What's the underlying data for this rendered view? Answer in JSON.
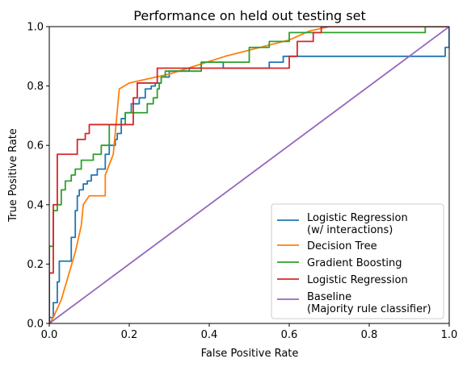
{
  "chart_data": {
    "type": "line",
    "title": "Performance on held out testing set",
    "xlabel": "False Positive Rate",
    "ylabel": "True Positive Rate",
    "xlim": [
      0,
      1
    ],
    "ylim": [
      0,
      1
    ],
    "xticks": [
      "0.0",
      "0.2",
      "0.4",
      "0.6",
      "0.8",
      "1.0"
    ],
    "yticks": [
      "0.0",
      "0.2",
      "0.4",
      "0.6",
      "0.8",
      "1.0"
    ],
    "grid": false,
    "legend_position": "lower right",
    "series": [
      {
        "name": "Logistic Regression\n(w/ interactions)",
        "color": "#1f77b4",
        "x": [
          0,
          0,
          0.01,
          0.01,
          0.02,
          0.02,
          0.025,
          0.025,
          0.055,
          0.055,
          0.065,
          0.065,
          0.07,
          0.07,
          0.075,
          0.075,
          0.085,
          0.085,
          0.095,
          0.095,
          0.105,
          0.105,
          0.12,
          0.12,
          0.14,
          0.14,
          0.15,
          0.15,
          0.165,
          0.165,
          0.17,
          0.17,
          0.18,
          0.18,
          0.19,
          0.19,
          0.205,
          0.205,
          0.225,
          0.225,
          0.24,
          0.24,
          0.255,
          0.255,
          0.265,
          0.265,
          0.28,
          0.28,
          0.3,
          0.3,
          0.35,
          0.35,
          0.38,
          0.38,
          0.435,
          0.435,
          0.55,
          0.55,
          0.585,
          0.585,
          0.63,
          0.63,
          0.99,
          0.99,
          1.0,
          1.0
        ],
        "y": [
          0,
          0.02,
          0.02,
          0.07,
          0.07,
          0.14,
          0.14,
          0.21,
          0.21,
          0.29,
          0.29,
          0.38,
          0.38,
          0.43,
          0.43,
          0.45,
          0.45,
          0.47,
          0.47,
          0.48,
          0.48,
          0.5,
          0.5,
          0.52,
          0.52,
          0.57,
          0.57,
          0.6,
          0.6,
          0.62,
          0.62,
          0.64,
          0.64,
          0.69,
          0.69,
          0.71,
          0.71,
          0.74,
          0.74,
          0.76,
          0.76,
          0.79,
          0.79,
          0.8,
          0.8,
          0.81,
          0.81,
          0.83,
          0.83,
          0.85,
          0.85,
          0.86,
          0.86,
          0.88,
          0.88,
          0.86,
          0.86,
          0.88,
          0.88,
          0.9,
          0.9,
          0.9,
          0.9,
          0.93,
          0.93,
          1.0
        ]
      },
      {
        "name": "Decision Tree",
        "color": "#ff7f0e",
        "x": [
          0,
          0.01,
          0.03,
          0.065,
          0.08,
          0.085,
          0.1,
          0.11,
          0.14,
          0.14,
          0.16,
          0.175,
          0.2,
          0.3,
          0.44,
          0.6,
          0.65,
          0.7,
          1.0
        ],
        "y": [
          0,
          0.02,
          0.08,
          0.24,
          0.33,
          0.4,
          0.43,
          0.43,
          0.43,
          0.5,
          0.57,
          0.79,
          0.81,
          0.84,
          0.9,
          0.955,
          0.985,
          1.0,
          1.0
        ],
        "step": false
      },
      {
        "name": "Gradient Boosting",
        "color": "#2ca02c",
        "x": [
          0,
          0,
          0.01,
          0.01,
          0.02,
          0.02,
          0.03,
          0.03,
          0.04,
          0.04,
          0.055,
          0.055,
          0.065,
          0.065,
          0.08,
          0.08,
          0.11,
          0.11,
          0.13,
          0.13,
          0.15,
          0.15,
          0.19,
          0.19,
          0.245,
          0.245,
          0.26,
          0.26,
          0.27,
          0.27,
          0.275,
          0.275,
          0.28,
          0.28,
          0.29,
          0.29,
          0.38,
          0.38,
          0.5,
          0.5,
          0.55,
          0.55,
          0.6,
          0.6,
          0.65,
          0.65,
          0.94,
          0.94,
          1.0
        ],
        "y": [
          0,
          0.26,
          0.26,
          0.38,
          0.38,
          0.4,
          0.4,
          0.45,
          0.45,
          0.48,
          0.48,
          0.5,
          0.5,
          0.52,
          0.52,
          0.55,
          0.55,
          0.57,
          0.57,
          0.6,
          0.6,
          0.67,
          0.67,
          0.71,
          0.71,
          0.74,
          0.74,
          0.76,
          0.76,
          0.79,
          0.79,
          0.81,
          0.81,
          0.83,
          0.83,
          0.85,
          0.85,
          0.88,
          0.88,
          0.93,
          0.93,
          0.95,
          0.95,
          0.98,
          0.98,
          0.98,
          0.98,
          1.0,
          1.0
        ]
      },
      {
        "name": "Logistic Regression",
        "color": "#d62728",
        "x": [
          0,
          0,
          0.01,
          0.01,
          0.02,
          0.02,
          0.07,
          0.07,
          0.09,
          0.09,
          0.1,
          0.1,
          0.21,
          0.21,
          0.22,
          0.22,
          0.27,
          0.27,
          0.37,
          0.37,
          0.6,
          0.6,
          0.62,
          0.62,
          0.66,
          0.66,
          0.68,
          0.68,
          1.0
        ],
        "y": [
          0,
          0.17,
          0.17,
          0.4,
          0.4,
          0.57,
          0.57,
          0.62,
          0.62,
          0.64,
          0.64,
          0.67,
          0.67,
          0.76,
          0.76,
          0.81,
          0.81,
          0.86,
          0.86,
          0.86,
          0.86,
          0.9,
          0.9,
          0.95,
          0.95,
          0.98,
          0.98,
          1.0,
          1.0
        ]
      },
      {
        "name": "Baseline\n(Majority rule classifier)",
        "color": "#9467bd",
        "x": [
          0,
          1
        ],
        "y": [
          0,
          1
        ]
      }
    ]
  }
}
